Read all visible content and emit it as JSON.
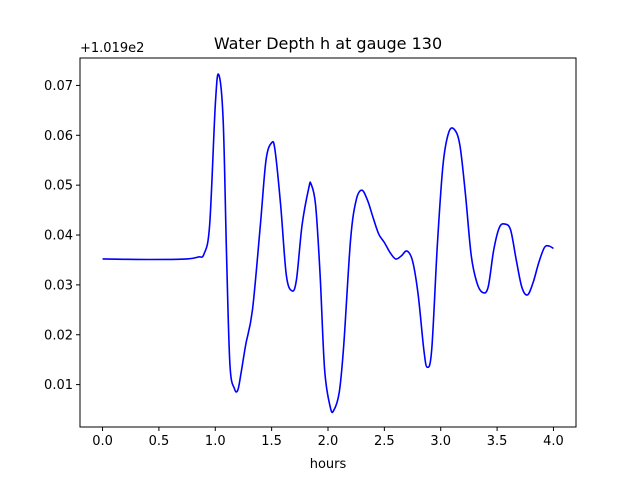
{
  "chart_data": {
    "type": "line",
    "title": "Water Depth h at gauge 130",
    "xlabel": "hours",
    "ylabel": "",
    "offset_label": "+1.019e2",
    "xlim": [
      -0.2,
      4.2
    ],
    "ylim": [
      0.0015,
      0.0755
    ],
    "xticks": [
      0.0,
      0.5,
      1.0,
      1.5,
      2.0,
      2.5,
      3.0,
      3.5,
      4.0
    ],
    "xtick_labels": [
      "0.0",
      "0.5",
      "1.0",
      "1.5",
      "2.0",
      "2.5",
      "3.0",
      "3.5",
      "4.0"
    ],
    "yticks": [
      0.01,
      0.02,
      0.03,
      0.04,
      0.05,
      0.06,
      0.07
    ],
    "ytick_labels": [
      "0.01",
      "0.02",
      "0.03",
      "0.04",
      "0.05",
      "0.06",
      "0.07"
    ],
    "grid": false,
    "series": [
      {
        "color": "#0000ff",
        "x": [
          0.0,
          0.3,
          0.6,
          0.75,
          0.85,
          0.9,
          0.95,
          1.0,
          1.03,
          1.07,
          1.1,
          1.13,
          1.17,
          1.2,
          1.23,
          1.27,
          1.33,
          1.4,
          1.45,
          1.5,
          1.53,
          1.58,
          1.63,
          1.68,
          1.72,
          1.77,
          1.83,
          1.85,
          1.89,
          1.93,
          1.97,
          2.02,
          2.05,
          2.1,
          2.14,
          2.2,
          2.25,
          2.3,
          2.35,
          2.4,
          2.45,
          2.5,
          2.55,
          2.6,
          2.65,
          2.7,
          2.75,
          2.8,
          2.85,
          2.88,
          2.92,
          2.97,
          3.02,
          3.07,
          3.12,
          3.17,
          3.22,
          3.27,
          3.32,
          3.37,
          3.42,
          3.47,
          3.52,
          3.57,
          3.62,
          3.67,
          3.72,
          3.77,
          3.82,
          3.87,
          3.92,
          3.96,
          4.0
        ],
        "y": [
          0.0352,
          0.0351,
          0.0351,
          0.0352,
          0.0356,
          0.0362,
          0.042,
          0.066,
          0.0722,
          0.063,
          0.036,
          0.014,
          0.0092,
          0.0089,
          0.0125,
          0.018,
          0.025,
          0.042,
          0.055,
          0.0585,
          0.057,
          0.046,
          0.032,
          0.0288,
          0.031,
          0.042,
          0.0495,
          0.0502,
          0.046,
          0.032,
          0.013,
          0.0055,
          0.0048,
          0.0085,
          0.018,
          0.039,
          0.047,
          0.049,
          0.047,
          0.0435,
          0.0402,
          0.0385,
          0.0365,
          0.0352,
          0.0358,
          0.0368,
          0.0348,
          0.028,
          0.017,
          0.0135,
          0.017,
          0.038,
          0.054,
          0.0605,
          0.0612,
          0.058,
          0.048,
          0.036,
          0.0305,
          0.0285,
          0.0295,
          0.037,
          0.0415,
          0.0422,
          0.041,
          0.035,
          0.0295,
          0.028,
          0.0305,
          0.0345,
          0.0375,
          0.0378,
          0.0373
        ]
      }
    ]
  }
}
